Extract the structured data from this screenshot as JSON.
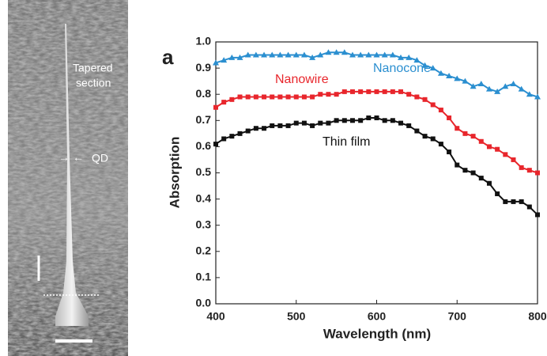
{
  "sem_image": {
    "labels": [
      "Tapered",
      "section",
      "QD"
    ]
  },
  "chart_data": {
    "type": "line",
    "panel_label": "a",
    "x_label": "Wavelength (nm)",
    "y_label": "Absorption",
    "x": [
      400,
      410,
      420,
      430,
      440,
      450,
      460,
      470,
      480,
      490,
      500,
      510,
      520,
      530,
      540,
      550,
      560,
      570,
      580,
      590,
      600,
      610,
      620,
      630,
      640,
      650,
      660,
      670,
      680,
      690,
      700,
      710,
      720,
      730,
      740,
      750,
      760,
      770,
      780,
      790,
      800
    ],
    "series": [
      {
        "name": "Nanocone",
        "color": "#2b8fd0",
        "marker": "triangle",
        "values": [
          0.92,
          0.93,
          0.94,
          0.94,
          0.95,
          0.95,
          0.95,
          0.95,
          0.95,
          0.95,
          0.95,
          0.95,
          0.94,
          0.95,
          0.96,
          0.96,
          0.96,
          0.95,
          0.95,
          0.95,
          0.95,
          0.95,
          0.95,
          0.94,
          0.94,
          0.93,
          0.91,
          0.9,
          0.88,
          0.87,
          0.86,
          0.85,
          0.83,
          0.84,
          0.82,
          0.81,
          0.83,
          0.84,
          0.82,
          0.8,
          0.79
        ]
      },
      {
        "name": "Nanowire",
        "color": "#e8262c",
        "marker": "square",
        "values": [
          0.75,
          0.77,
          0.78,
          0.79,
          0.79,
          0.79,
          0.79,
          0.79,
          0.79,
          0.79,
          0.79,
          0.79,
          0.79,
          0.8,
          0.8,
          0.8,
          0.81,
          0.81,
          0.81,
          0.81,
          0.81,
          0.81,
          0.81,
          0.81,
          0.8,
          0.79,
          0.78,
          0.76,
          0.74,
          0.71,
          0.67,
          0.65,
          0.64,
          0.62,
          0.6,
          0.59,
          0.57,
          0.55,
          0.52,
          0.51,
          0.5
        ]
      },
      {
        "name": "Thin film",
        "color": "#111111",
        "marker": "square",
        "values": [
          0.61,
          0.63,
          0.64,
          0.65,
          0.66,
          0.67,
          0.67,
          0.68,
          0.68,
          0.68,
          0.69,
          0.69,
          0.68,
          0.69,
          0.69,
          0.7,
          0.7,
          0.7,
          0.7,
          0.71,
          0.71,
          0.7,
          0.7,
          0.69,
          0.68,
          0.66,
          0.64,
          0.63,
          0.61,
          0.58,
          0.53,
          0.51,
          0.5,
          0.48,
          0.46,
          0.42,
          0.39,
          0.39,
          0.39,
          0.37,
          0.34
        ]
      }
    ],
    "xlim": [
      400,
      800
    ],
    "xticks": [
      400,
      500,
      600,
      700,
      800
    ],
    "ylim": [
      0,
      1
    ],
    "yticks": [
      {
        "value": 0,
        "label": "0.0"
      },
      0.1,
      0.2,
      0.3,
      0.4,
      0.5,
      0.6,
      0.7,
      0.8,
      0.9,
      {
        "value": 1,
        "label": "1.0"
      }
    ]
  }
}
